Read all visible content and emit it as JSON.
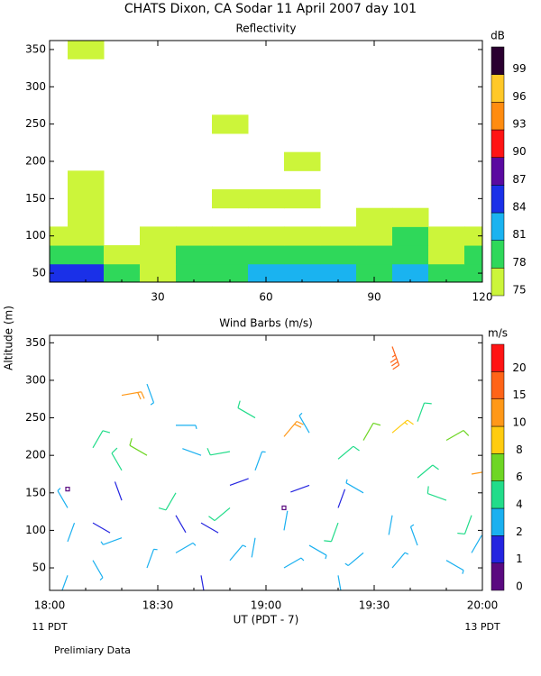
{
  "title": "CHATS Dixon, CA  Sodar  11 April 2007  day 101",
  "ylabel": "Altitude (m)",
  "note": "Prelimiary Data",
  "chart_data": [
    {
      "type": "heatmap",
      "title": "Reflectivity",
      "colorbar_label": "dB",
      "x": [
        0,
        10,
        20,
        30,
        40,
        50,
        60,
        70,
        80,
        90,
        100,
        110,
        120
      ],
      "y": [
        50,
        75,
        100,
        125,
        150,
        175,
        200,
        225,
        250,
        275,
        300,
        325,
        350
      ],
      "z": [
        [
          84,
          84,
          78,
          75,
          78,
          78,
          81,
          81,
          81,
          78,
          81,
          78,
          78
        ],
        [
          78,
          78,
          75,
          75,
          78,
          78,
          78,
          78,
          78,
          78,
          78,
          75,
          78
        ],
        [
          75,
          75,
          null,
          75,
          75,
          75,
          75,
          75,
          75,
          75,
          78,
          75,
          75
        ],
        [
          null,
          75,
          null,
          null,
          null,
          null,
          null,
          null,
          null,
          75,
          75,
          null,
          null
        ],
        [
          null,
          75,
          null,
          null,
          null,
          75,
          75,
          75,
          null,
          null,
          null,
          null,
          null
        ],
        [
          null,
          75,
          null,
          null,
          null,
          null,
          null,
          null,
          null,
          null,
          null,
          null,
          null
        ],
        [
          null,
          null,
          null,
          null,
          null,
          null,
          null,
          75,
          null,
          null,
          null,
          null,
          null
        ],
        [
          null,
          null,
          null,
          null,
          null,
          null,
          null,
          null,
          null,
          null,
          null,
          null,
          null
        ],
        [
          null,
          null,
          null,
          null,
          null,
          75,
          null,
          null,
          null,
          null,
          null,
          null,
          null
        ],
        [
          null,
          null,
          null,
          null,
          null,
          null,
          null,
          null,
          null,
          null,
          null,
          null,
          null
        ],
        [
          null,
          null,
          null,
          null,
          null,
          null,
          null,
          null,
          null,
          null,
          null,
          null,
          null
        ],
        [
          null,
          null,
          null,
          null,
          null,
          null,
          null,
          null,
          null,
          null,
          null,
          null,
          null
        ],
        [
          null,
          75,
          null,
          null,
          null,
          null,
          null,
          null,
          null,
          null,
          null,
          null,
          null
        ]
      ],
      "levels": [
        75,
        78,
        81,
        84,
        87,
        90,
        93,
        96,
        99
      ],
      "colors": [
        "#ccf53a",
        "#2fd85a",
        "#1ab3f0",
        "#1a30e8",
        "#5a0aa0",
        "#ff1414",
        "#ff8c10",
        "#ffc828",
        "#2a0030"
      ],
      "xlim": [
        0,
        120
      ],
      "ylim": [
        38,
        362
      ],
      "xticks": [
        {
          "value": 0,
          "label": ""
        },
        30,
        60,
        90,
        120
      ],
      "yticks": [
        50,
        100,
        150,
        200,
        250,
        300,
        350
      ]
    },
    {
      "type": "barbs",
      "title": "Wind Barbs (m/s)",
      "colorbar_label": "m/s",
      "xlabel": "UT  (PDT - 7)",
      "x_start_label": "11 PDT",
      "x_end_label": "13 PDT",
      "x": [
        5,
        5,
        5,
        5,
        12,
        12,
        12,
        20,
        20,
        20,
        20,
        27,
        27,
        27,
        35,
        35,
        35,
        35,
        42,
        42,
        42,
        50,
        50,
        50,
        50,
        57,
        57,
        57,
        65,
        65,
        65,
        65,
        72,
        72,
        72,
        80,
        80,
        80,
        80,
        87,
        87,
        87,
        95,
        95,
        95,
        95,
        102,
        102,
        102,
        110,
        110,
        110,
        117,
        117,
        117
      ],
      "y": [
        40,
        85,
        130,
        155,
        60,
        110,
        210,
        90,
        180,
        280,
        140,
        50,
        200,
        295,
        70,
        150,
        240,
        120,
        40,
        110,
        200,
        60,
        130,
        205,
        160,
        90,
        180,
        250,
        50,
        130,
        225,
        100,
        80,
        160,
        230,
        40,
        110,
        195,
        130,
        70,
        150,
        220,
        50,
        120,
        230,
        345,
        80,
        170,
        245,
        60,
        140,
        220,
        70,
        120,
        175
      ],
      "speed": [
        3,
        2,
        3,
        0.5,
        3,
        1,
        5,
        3,
        5,
        11,
        1,
        3,
        6,
        3,
        3,
        5,
        3,
        1,
        1,
        1,
        2,
        3,
        5,
        5,
        1,
        2,
        3,
        5,
        3,
        0.5,
        11,
        2,
        3,
        1,
        3,
        3,
        5,
        5,
        1,
        3,
        3,
        7,
        3,
        2,
        9,
        18,
        3,
        5,
        5,
        3,
        5,
        6,
        3,
        5,
        10
      ],
      "direction": [
        200,
        20,
        330,
        0,
        150,
        120,
        30,
        250,
        330,
        80,
        340,
        20,
        300,
        160,
        60,
        210,
        90,
        150,
        170,
        120,
        290,
        40,
        230,
        260,
        70,
        190,
        20,
        300,
        60,
        0,
        40,
        10,
        120,
        250,
        330,
        170,
        200,
        50,
        20,
        230,
        300,
        30,
        40,
        190,
        50,
        160,
        340,
        50,
        20,
        120,
        290,
        60,
        30,
        200,
        80
      ],
      "levels": [
        0,
        1,
        2,
        4,
        6,
        8,
        10,
        15,
        20
      ],
      "colors": [
        "#5a0a80",
        "#2424e0",
        "#1ab0f0",
        "#22dc8a",
        "#6ed624",
        "#ffcc10",
        "#ff9818",
        "#ff6418",
        "#ff1414"
      ],
      "cbar_top": 24,
      "xlim": [
        0,
        120
      ],
      "ylim": [
        20,
        360
      ],
      "xticks": [
        {
          "value": 0,
          "label": "18:00"
        },
        {
          "value": 30,
          "label": "18:30"
        },
        {
          "value": 60,
          "label": "19:00"
        },
        {
          "value": 90,
          "label": "19:30"
        },
        {
          "value": 120,
          "label": "20:00"
        }
      ],
      "yticks": [
        50,
        100,
        150,
        200,
        250,
        300,
        350
      ]
    }
  ]
}
